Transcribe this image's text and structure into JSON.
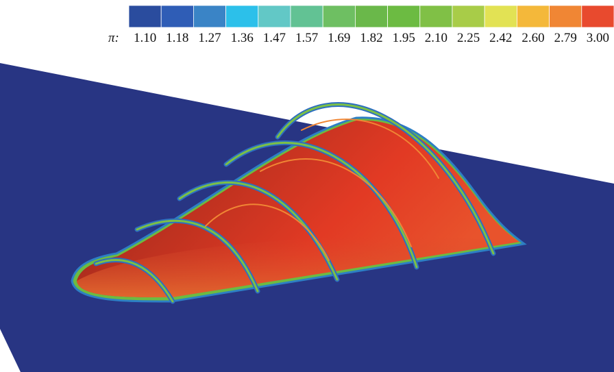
{
  "colorbar": {
    "symbol": "π:",
    "labels": [
      "1.10",
      "1.18",
      "1.27",
      "1.36",
      "1.47",
      "1.57",
      "1.69",
      "1.82",
      "1.95",
      "2.10",
      "2.25",
      "2.42",
      "2.60",
      "2.79",
      "3.00"
    ],
    "colors": [
      "#2a4c9e",
      "#2f5db6",
      "#3a84c6",
      "#2cc0ea",
      "#62c8c6",
      "#62c294",
      "#6ebf62",
      "#6ab84a",
      "#6cbb42",
      "#80c046",
      "#a8cc48",
      "#e2e254",
      "#f4b83a",
      "#f08634",
      "#e84a2e"
    ]
  }
}
